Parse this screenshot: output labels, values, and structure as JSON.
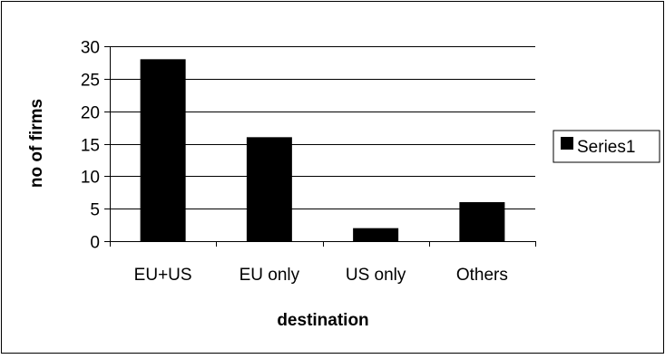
{
  "chart_data": {
    "type": "bar",
    "title": "",
    "xlabel": "destination",
    "ylabel": "no of firms",
    "categories": [
      "EU+US",
      "EU only",
      "US only",
      "Others"
    ],
    "series": [
      {
        "name": "Series1",
        "values": [
          28,
          16,
          2,
          6
        ],
        "color": "#000000"
      }
    ],
    "ylim": [
      0,
      30
    ],
    "yticks": [
      0,
      5,
      10,
      15,
      20,
      25,
      30
    ],
    "grid": true,
    "legend": "right"
  },
  "colors": {
    "bar": "#000000",
    "grid": "#000000",
    "background": "#ffffff",
    "frame": "#000000"
  }
}
